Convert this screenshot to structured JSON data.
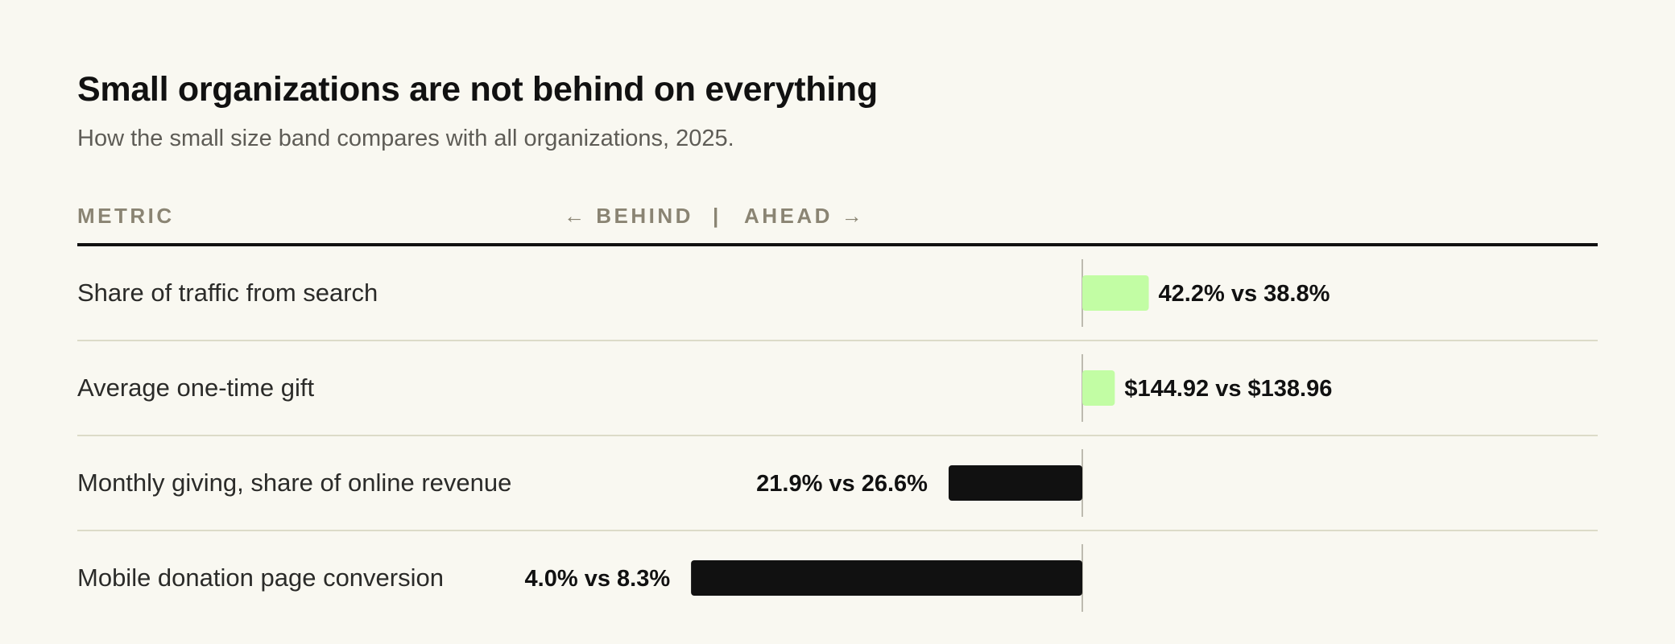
{
  "title": "Small organizations are not behind on everything",
  "subtitle": "How the small size band compares with all organizations, 2025.",
  "header": {
    "metric_label": "METRIC",
    "behind_label": "← BEHIND",
    "separator": "|",
    "ahead_label": "AHEAD →"
  },
  "colors": {
    "ahead": "#c2fda4",
    "behind": "#111111",
    "background": "#f9f8f1"
  },
  "chart_data": {
    "type": "bar",
    "orientation": "horizontal-diverging",
    "baseline_note": "bars extend right when small orgs are ahead, left when behind",
    "categories": [
      "Share of traffic from search",
      "Average one-time gift",
      "Monthly giving, share of online revenue",
      "Mobile donation page conversion"
    ],
    "series": [
      {
        "values": [
          42.2,
          144.92,
          21.9,
          4.0
        ]
      },
      {
        "values": [
          38.8,
          138.96,
          26.6,
          8.3
        ]
      }
    ],
    "relative_difference": [
      0.088,
      0.043,
      -0.177,
      -0.518
    ],
    "direction": [
      "ahead",
      "ahead",
      "behind",
      "behind"
    ],
    "value_labels": [
      "42.2% vs 38.8%",
      "$144.92 vs $138.96",
      "21.9% vs 26.6%",
      "4.0% vs 8.3%"
    ],
    "grid": false,
    "legend": "none"
  }
}
